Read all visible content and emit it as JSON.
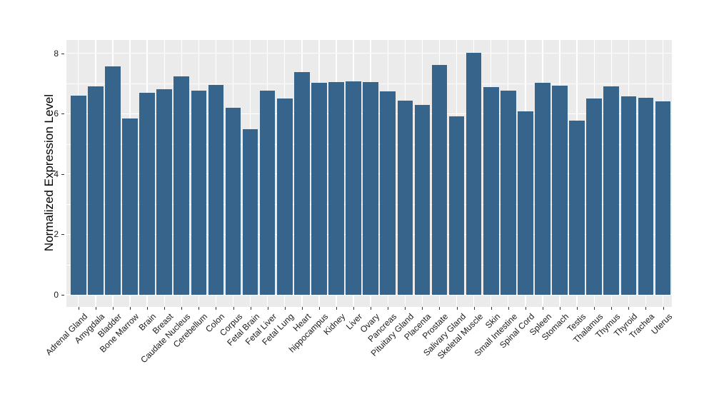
{
  "chart_data": {
    "type": "bar",
    "title": "",
    "ylabel": "Normalized Expression Level",
    "xlabel": "",
    "ylim": [
      0,
      8.44
    ],
    "yticks": [
      0,
      2,
      4,
      6,
      8
    ],
    "minor_yticks": [
      1,
      3,
      5,
      7
    ],
    "grid": "on",
    "legend": "none",
    "categories": [
      "Adrenal Gland",
      "Amygdala",
      "Bladder",
      "Bone Marrow",
      "Brain",
      "Breast",
      "Caudate Nucleus",
      "Cerebellum",
      "Colon",
      "Corpus",
      "Fetal Brain",
      "Fetal Liver",
      "Fetal Lung",
      "Heart",
      "hippocampus",
      "Kidney",
      "Liver",
      "Ovary",
      "Pancreas",
      "Pituitary Gland",
      "Placenta",
      "Prostate",
      "Salivary Gland",
      "Skeletal Muscle",
      "Skin",
      "Small Intestine",
      "Spinal Cord",
      "Spleen",
      "Stomach",
      "Testis",
      "Thalamus",
      "Thymus",
      "Thyroid",
      "Trachea",
      "Uterus"
    ],
    "values": [
      6.6,
      6.9,
      7.57,
      5.84,
      6.69,
      6.8,
      7.24,
      6.75,
      6.95,
      6.19,
      5.49,
      6.75,
      6.49,
      7.38,
      7.02,
      7.04,
      7.08,
      7.04,
      6.73,
      6.44,
      6.28,
      7.61,
      5.92,
      8.01,
      6.88,
      6.77,
      6.08,
      7.01,
      6.93,
      5.77,
      6.51,
      6.9,
      6.58,
      6.53,
      6.4
    ],
    "colors": {
      "bar_fill": "#36648B",
      "panel_background": "#EBEBEB",
      "gridline": "#FFFFFF",
      "tick_text": "#1a1a1a",
      "axis_title_text": "#000000"
    }
  }
}
